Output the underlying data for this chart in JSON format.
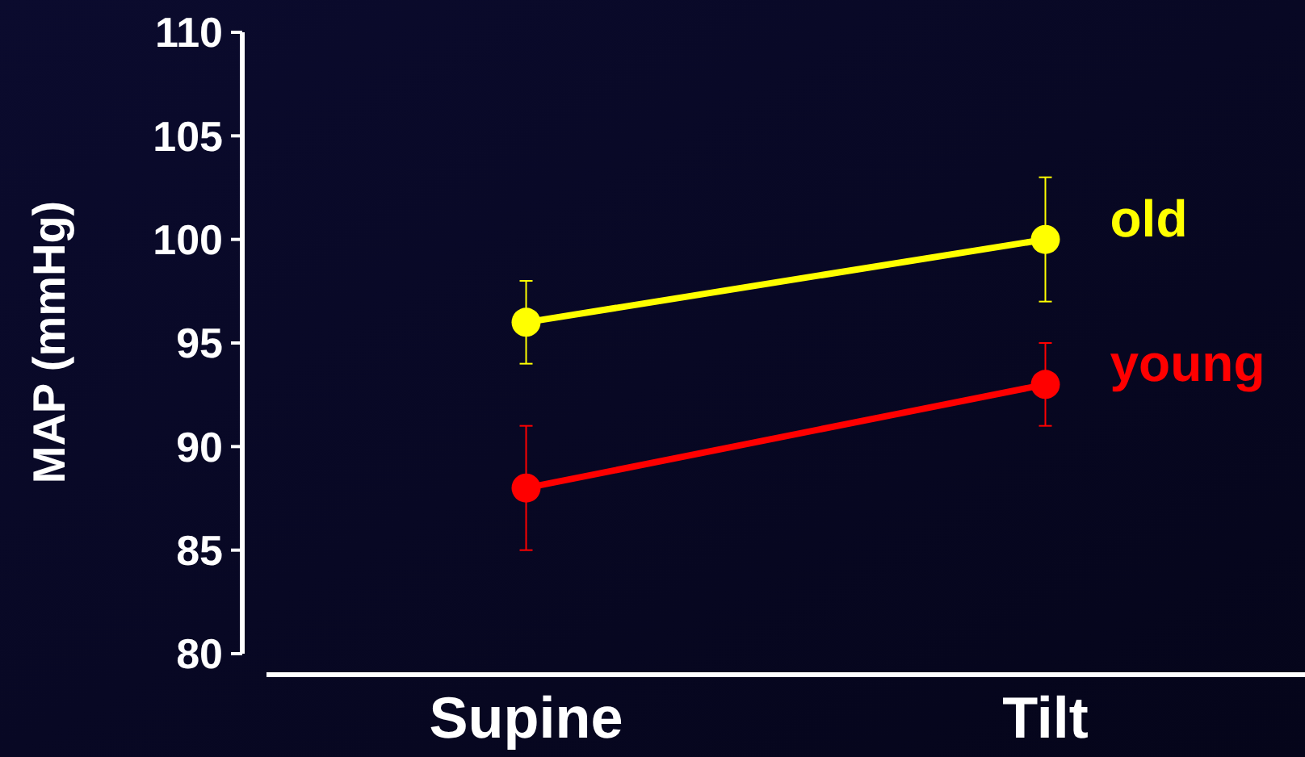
{
  "chart_data": {
    "type": "line",
    "ylabel": "MAP (mmHg)",
    "categories": [
      "Supine",
      "Tilt"
    ],
    "series": [
      {
        "name": "old",
        "color": "#ffff00",
        "values": [
          96,
          100
        ],
        "errors": [
          2,
          3
        ]
      },
      {
        "name": "young",
        "color": "#ff0000",
        "values": [
          88,
          93
        ],
        "errors": [
          3,
          2
        ]
      }
    ],
    "ylim": [
      80,
      110
    ],
    "yticks": [
      80,
      85,
      90,
      95,
      100,
      105,
      110
    ],
    "marker": "circle",
    "line_style": "solid",
    "grid": false
  }
}
